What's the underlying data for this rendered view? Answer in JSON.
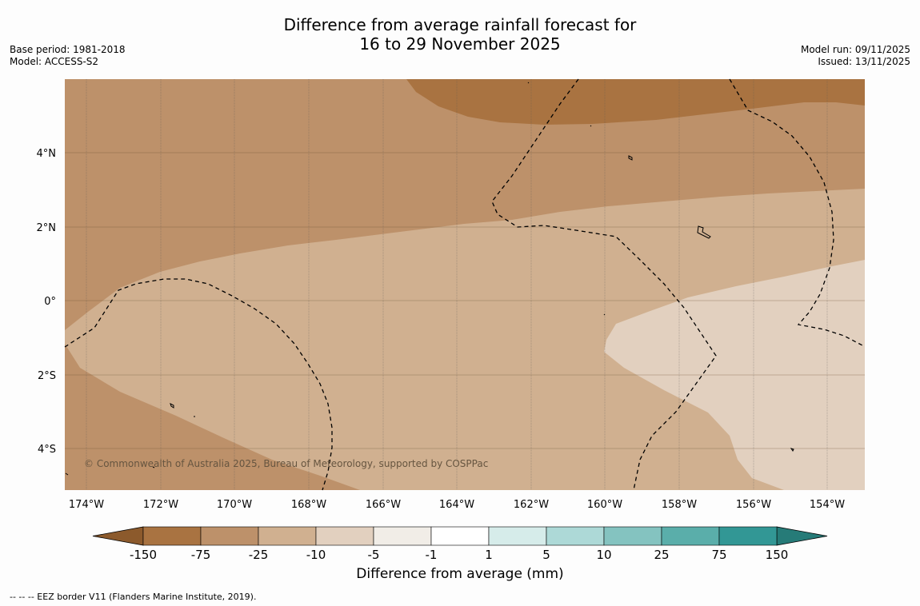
{
  "title": {
    "line1": "Difference from average rainfall forecast for",
    "line2": "16 to 29 November 2025"
  },
  "meta_left": {
    "base_period": "Base period: 1981-2018",
    "model": "Model: ACCESS-S2"
  },
  "meta_right": {
    "model_run": "Model run: 09/11/2025",
    "issued": "Issued: 13/11/2025"
  },
  "map": {
    "lat_labels": [
      "4°N",
      "2°N",
      "0°",
      "2°S",
      "4°S"
    ],
    "lat_values": [
      4,
      2,
      0,
      -2,
      -4
    ],
    "lon_labels": [
      "174°W",
      "172°W",
      "170°W",
      "168°W",
      "166°W",
      "164°W",
      "162°W",
      "160°W",
      "158°W",
      "156°W",
      "154°W"
    ],
    "lon_values": [
      -174,
      -172,
      -170,
      -168,
      -166,
      -164,
      -162,
      -160,
      -158,
      -156,
      -154
    ],
    "copyright": "© Commonwealth of Australia 2025, Bureau of Meteorology, supported by COSPPac"
  },
  "colorbar": {
    "ticks": [
      "-150",
      "-75",
      "-25",
      "-10",
      "-5",
      "-1",
      "1",
      "5",
      "10",
      "25",
      "75",
      "150"
    ],
    "colors": [
      "#a97341",
      "#bd916a",
      "#d0b090",
      "#e2d0bf",
      "#f1ede7",
      "#ffffff",
      "#d6ecea",
      "#add9d7",
      "#84c3c0",
      "#5aaeaa",
      "#329795"
    ],
    "under_color": "#8c5a2c",
    "over_color": "#267b78",
    "label": "Difference from average (mm)"
  },
  "footnote": "--  --  -- EEZ border V11 (Flanders Marine Institute, 2019)."
}
